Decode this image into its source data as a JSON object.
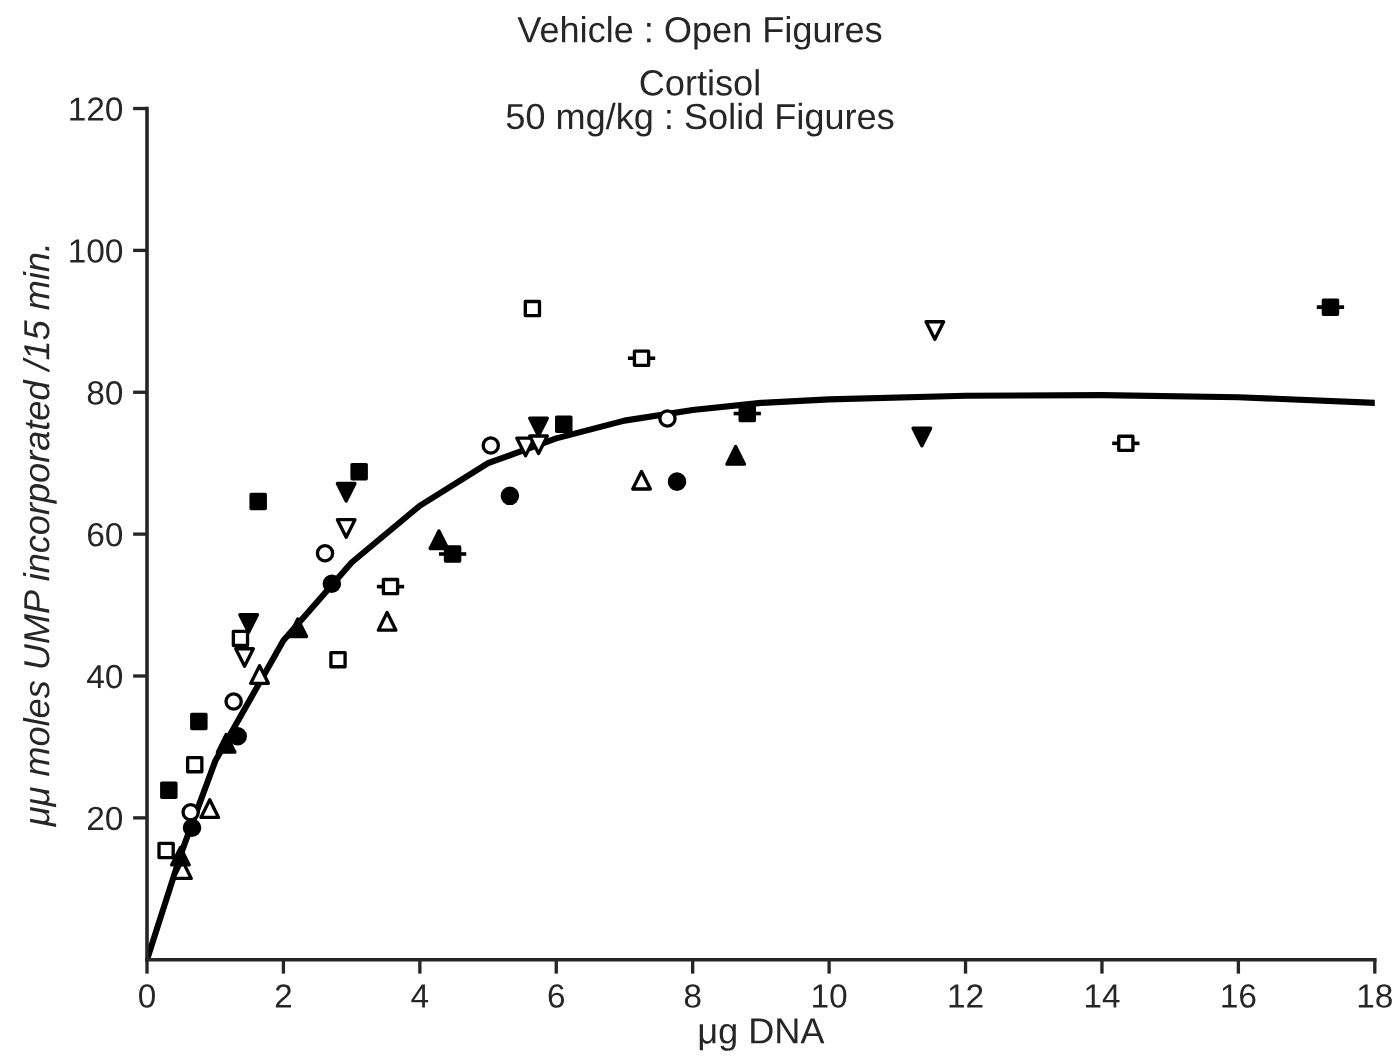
{
  "chart_data": {
    "type": "scatter",
    "xlabel": "μg DNA",
    "ylabel": "μμ moles UMP incorporated /15 min.",
    "annotations": [
      "Vehicle : Open Figures",
      "Cortisol\n50 mg/kg : Solid Figures"
    ],
    "xlim": [
      0,
      18
    ],
    "xticks": [
      0,
      2,
      4,
      6,
      8,
      10,
      12,
      14,
      16,
      18
    ],
    "ylim": [
      0,
      120
    ],
    "yticks": [
      20,
      40,
      60,
      80,
      100,
      120
    ],
    "grid": false,
    "legend": false,
    "series": [
      {
        "type": "line",
        "color": "#000000",
        "marker": "none",
        "line_style": "solid",
        "x": [
          0,
          0.5,
          1,
          2,
          3,
          4,
          5,
          6,
          7,
          8,
          9,
          10,
          12,
          14,
          16,
          18
        ],
        "values": [
          0,
          15,
          28,
          45,
          56,
          64,
          70,
          73.5,
          76,
          77.5,
          78.5,
          79,
          79.5,
          79.6,
          79.3,
          78.5
        ]
      },
      {
        "color": "#ffffff",
        "marker": "circle",
        "x": [
          5.04,
          7.63,
          2.61,
          1.27,
          0.64
        ],
        "values": [
          72.5,
          76.3,
          57.3,
          36.4,
          20.8
        ]
      },
      {
        "color": "#000000",
        "marker": "circle",
        "x": [
          7.77,
          5.32,
          2.71,
          1.33,
          0.66
        ],
        "values": [
          67.4,
          65.4,
          53.0,
          31.5,
          18.6
        ]
      },
      {
        "color": "#ffffff",
        "marker": "square",
        "x": [
          5.65,
          2.8,
          1.37,
          0.7,
          0.28
        ],
        "values": [
          91.8,
          42.3,
          45.3,
          27.5,
          15.4
        ]
      },
      {
        "color": "#000000",
        "marker": "square",
        "x": [
          1.63,
          3.11,
          6.11,
          0.76,
          0.32
        ],
        "values": [
          64.6,
          68.8,
          75.5,
          33.6,
          23.9
        ]
      },
      {
        "color": "#ffffff",
        "marker": "triangle",
        "x": [
          7.25,
          3.52,
          1.65,
          0.92,
          0.52
        ],
        "values": [
          67.6,
          47.7,
          40.2,
          21.3,
          12.7
        ]
      },
      {
        "color": "#000000",
        "marker": "triangle",
        "x": [
          8.63,
          4.28,
          2.21,
          1.16,
          0.49
        ],
        "values": [
          71.1,
          59.2,
          46.8,
          30.5,
          14.6
        ]
      },
      {
        "color": "#ffffff",
        "marker": "triangle_down",
        "x": [
          5.55,
          5.74,
          2.92,
          1.43,
          11.55
        ],
        "values": [
          72.3,
          72.6,
          60.8,
          42.6,
          88.7
        ]
      },
      {
        "color": "#000000",
        "marker": "triangle_down",
        "x": [
          2.92,
          5.74,
          1.49,
          11.36
        ],
        "values": [
          65.9,
          75.1,
          47.4,
          73.7
        ]
      },
      {
        "color": "#ffffff",
        "marker": "square",
        "x": [
          7.25,
          3.57,
          14.35
        ],
        "values": [
          84.8,
          52.6,
          72.8
        ],
        "xerrors": [
          0.2,
          0.2,
          0.2
        ]
      },
      {
        "color": "#000000",
        "marker": "square",
        "x": [
          8.8,
          4.48,
          17.35
        ],
        "values": [
          77.0,
          57.2,
          92.0
        ],
        "xerrors": [
          0.2,
          0.2,
          0.2
        ]
      }
    ]
  }
}
